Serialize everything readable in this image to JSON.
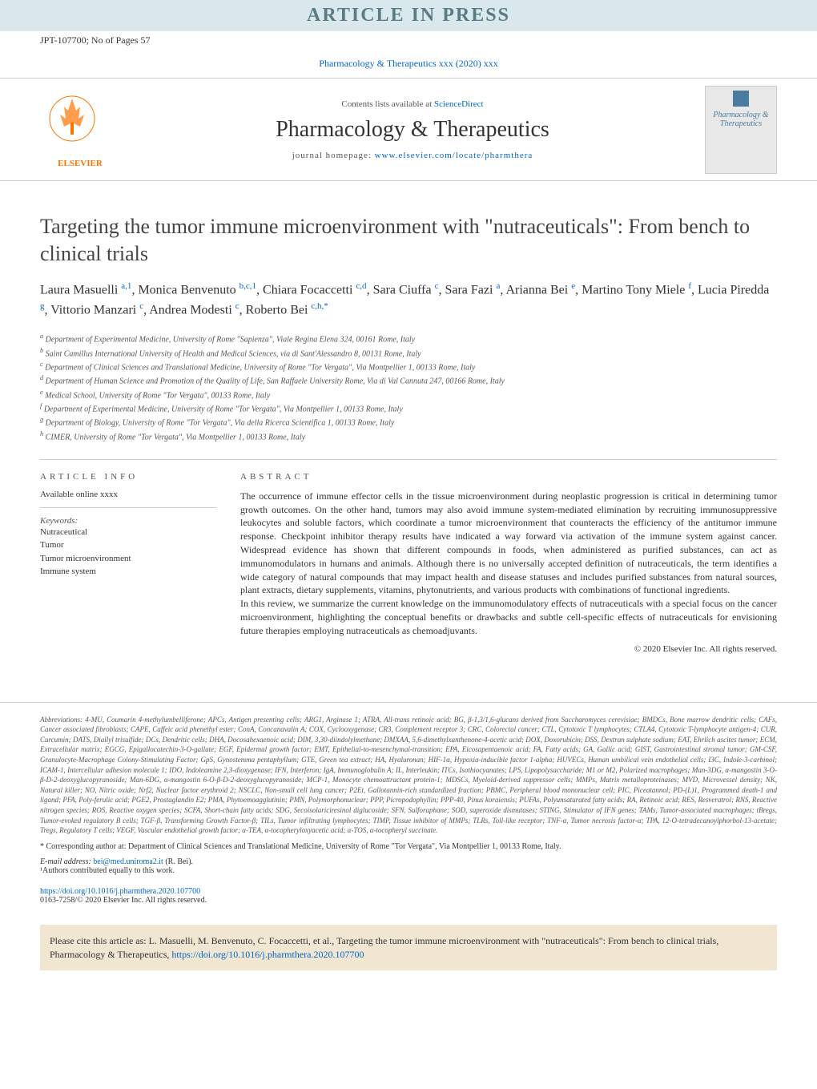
{
  "header_bar": "ARTICLE IN PRESS",
  "header_sub": "JPT-107700; No of Pages 57",
  "citation": "Pharmacology & Therapeutics xxx (2020) xxx",
  "contents_list_prefix": "Contents lists available at ",
  "sciencedirect": "ScienceDirect",
  "journal_title": "Pharmacology & Therapeutics",
  "homepage_prefix": "journal homepage: ",
  "homepage_url": "www.elsevier.com/locate/pharmthera",
  "elsevier_label": "ELSEVIER",
  "cover_text": "Pharmacology & Therapeutics",
  "article_title": "Targeting the tumor immune microenvironment with \"nutraceuticals\": From bench to clinical trials",
  "authors_html": "Laura Masuelli <sup>a,1</sup>, Monica Benvenuto <sup>b,c,1</sup>, Chiara Focaccetti <sup>c,d</sup>, Sara Ciuffa <sup>c</sup>, Sara Fazi <sup>a</sup>, Arianna Bei <sup>e</sup>, Martino Tony Miele <sup>f</sup>, Lucia Piredda <sup>g</sup>, Vittorio Manzari <sup>c</sup>, Andrea Modesti <sup>c</sup>, Roberto Bei <sup>c,h,*</sup>",
  "affiliations": [
    {
      "sup": "a",
      "text": " Department of Experimental Medicine, University of Rome \"Sapienza\", Viale Regina Elena 324, 00161 Rome, Italy"
    },
    {
      "sup": "b",
      "text": " Saint Camillus International University of Health and Medical Sciences, via di Sant'Alessandro 8, 00131 Rome, Italy"
    },
    {
      "sup": "c",
      "text": " Department of Clinical Sciences and Translational Medicine, University of Rome \"Tor Vergata\", Via Montpellier 1, 00133 Rome, Italy"
    },
    {
      "sup": "d",
      "text": " Department of Human Science and Promotion of the Quality of Life, San Raffaele University Rome, Via di Val Cannuta 247, 00166 Rome, Italy"
    },
    {
      "sup": "e",
      "text": " Medical School, University of Rome \"Tor Vergata\", 00133 Rome, Italy"
    },
    {
      "sup": "f",
      "text": " Department of Experimental Medicine, University of Rome \"Tor Vergata\", Via Montpellier 1, 00133 Rome, Italy"
    },
    {
      "sup": "g",
      "text": " Department of Biology, University of Rome \"Tor Vergata\", Via della Ricerca Scientifica 1, 00133 Rome, Italy"
    },
    {
      "sup": "h",
      "text": " CIMER, University of Rome \"Tor Vergata\", Via Montpellier 1, 00133 Rome, Italy"
    }
  ],
  "article_info_heading": "ARTICLE INFO",
  "available_online": "Available online xxxx",
  "keywords_label": "Keywords:",
  "keywords": [
    "Nutraceutical",
    "Tumor",
    "Tumor microenvironment",
    "Immune system"
  ],
  "abstract_heading": "ABSTRACT",
  "abstract_p1": "The occurrence of immune effector cells in the tissue microenvironment during neoplastic progression is critical in determining tumor growth outcomes. On the other hand, tumors may also avoid immune system-mediated elimination by recruiting immunosuppressive leukocytes and soluble factors, which coordinate a tumor microenvironment that counteracts the efficiency of the antitumor immune response. Checkpoint inhibitor therapy results have indicated a way forward via activation of the immune system against cancer. Widespread evidence has shown that different compounds in foods, when administered as purified substances, can act as immunomodulators in humans and animals. Although there is no universally accepted definition of nutraceuticals, the term identifies a wide category of natural compounds that may impact health and disease statuses and includes purified substances from natural sources, plant extracts, dietary supplements, vitamins, phytonutrients, and various products with combinations of functional ingredients.",
  "abstract_p2": "In this review, we summarize the current knowledge on the immunomodulatory effects of nutraceuticals with a special focus on the cancer microenvironment, highlighting the conceptual benefits or drawbacks and subtle cell-specific effects of nutraceuticals for envisioning future therapies employing nutraceuticals as chemoadjuvants.",
  "abstract_copyright": "© 2020 Elsevier Inc. All rights reserved.",
  "abbreviations_label": "Abbreviations:",
  "abbreviations_text": " 4-MU, Coumarin 4-methylumbelliferone; APCs, Antigen presenting cells; ARG1, Arginase 1; ATRA, All-trans retinoic acid; BG, β-1,3/1,6-glucans derived from Saccharomyces cerevisiae; BMDCs, Bone marrow dendritic cells; CAFs, Cancer associated fibroblasts; CAPE, Caffeic acid phenethyl ester; ConA, Concanavalin A; COX, Cyclooxygenase; CR3, Complement receptor 3; CRC, Colorectal cancer; CTL, Cytotoxic T lymphocytes; CTLA4, Cytotoxic T-lymphocyte antigen-4; CUR, Curcumin; DATS, Diallyl trisulfide; DCs, Dendritic cells; DHA, Docosahexaenoic acid; DIM, 3,30-diindolylmethane; DMXAA, 5,6-dimethylxanthenone-4-acetic acid; DOX, Doxorubicin; DSS, Dextran sulphate sodium; EAT, Ehrlich ascites tumor; ECM, Extracellular matrix; EGCG, Epigallocatechin-3-O-gallate; EGF, Epidermal growth factor; EMT, Epithelial-to-mesenchymal-transition; EPA, Eicosapentaenoic acid; FA, Fatty acids; GA, Gallic acid; GIST, Gastrointestinal stromal tumor; GM-CSF, Granulocyte-Macrophage Colony-Stimulating Factor; GpS, Gynostemma pentaphyllum; GTE, Green tea extract; HA, Hyaluronan; HIF-1α, Hypoxia-inducible factor 1-alpha; HUVECs, Human umbilical vein endothelial cells; I3C, Indole-3-carbinol; ICAM-1, Intercellular adhesion molecule 1; IDO, Indoleamine 2,3-dioxygenase; IFN, Interferon; IgA, Immunoglobulin A; IL, Interleukin; ITCs, Isothiocyanates; LPS, Lipopolysaccharide; M1 or M2, Polarized macrophages; Man-3DG, α-mangostin 3-O-β-D-2-deoxyglucopyranoside; Man-6DG, α-mangostin 6-O-β-D-2-deoxyglucopyranoside; MCP-1, Monocyte chemoattractant protein-1; MDSCs, Myeloid-derived suppressor cells; MMPs, Matrix metalloproteinases; MVD, Microvessel density; NK, Natural killer; NO, Nitric oxide; Nrf2, Nuclear factor erythroid 2; NSCLC, Non-small cell lung cancer; P2Et, Gallotannin-rich standardized fraction; PBMC, Peripheral blood mononuclear cell; PIC, Piceatannol; PD-(L)1, Programmed death-1 and ligand; PFA, Poly-ferulic acid; PGE2, Prostaglandin E2; PMA, Phytoemoagglutinin; PMN, Polymorphonuclear; PPP, Picropodophyllin; PPP-40, Pinus koraiensis; PUFAs, Polyunsaturated fatty acids; RA, Retinoic acid; RES, Resveratrol; RNS, Reactive nitrogen species; ROS, Reactive oxygen species; SCFA, Short-chain fatty acids; SDG, Secoisolariciresinol diglucoside; SFN, Sulforaphane; SOD, superoxide dismutases; STING, Stimulator of IFN genes; TAMs, Tumor-associated macrophages; tBregs, Tumor-evoked regulatory B cells; TGF-β, Transforming Growth Factor-β; TILs, Tumor infiltrating lymphocytes; TIMP, Tissue inhibitor of MMPs; TLRs, Toll-like receptor; TNF-α, Tumor necrosis factor-α; TPA, 12-O-tetradecanoylphorbol-13-acetate; Tregs, Regulatory T cells; VEGF, Vascular endothelial growth factor; α-TEA, α-tocopheryloxyacetic acid; α-TOS, α-tocopheryl succinate.",
  "corresponding_prefix": "* Corresponding author at: Department of Clinical Sciences and Translational Medicine, University of Rome \"Tor Vergata\", Via Montpellier 1, 00133 Rome, Italy.",
  "email_label": "E-mail address: ",
  "email": "bei@med.uniroma2.it",
  "email_suffix": " (R. Bei).",
  "footnote_equal": "¹Authors contributed equally to this work.",
  "doi_url": "https://doi.org/10.1016/j.pharmthera.2020.107700",
  "doi_copyright": "0163-7258/© 2020 Elsevier Inc. All rights reserved.",
  "cite_text_prefix": "Please cite this article as: L. Masuelli, M. Benvenuto, C. Focaccetti, et al., Targeting the tumor immune microenvironment with \"nutraceuticals\": From bench to clinical trials, Pharmacology & Therapeutics, ",
  "cite_url": "https://doi.org/10.1016/j.pharmthera.2020.107700",
  "colors": {
    "header_bg": "#d9e8ec",
    "header_text": "#5a7a85",
    "link": "#0066cc",
    "elsevier_orange": "#ff7400",
    "cite_bg": "#f0e6d2",
    "border": "#cccccc",
    "body_text": "#333333"
  }
}
